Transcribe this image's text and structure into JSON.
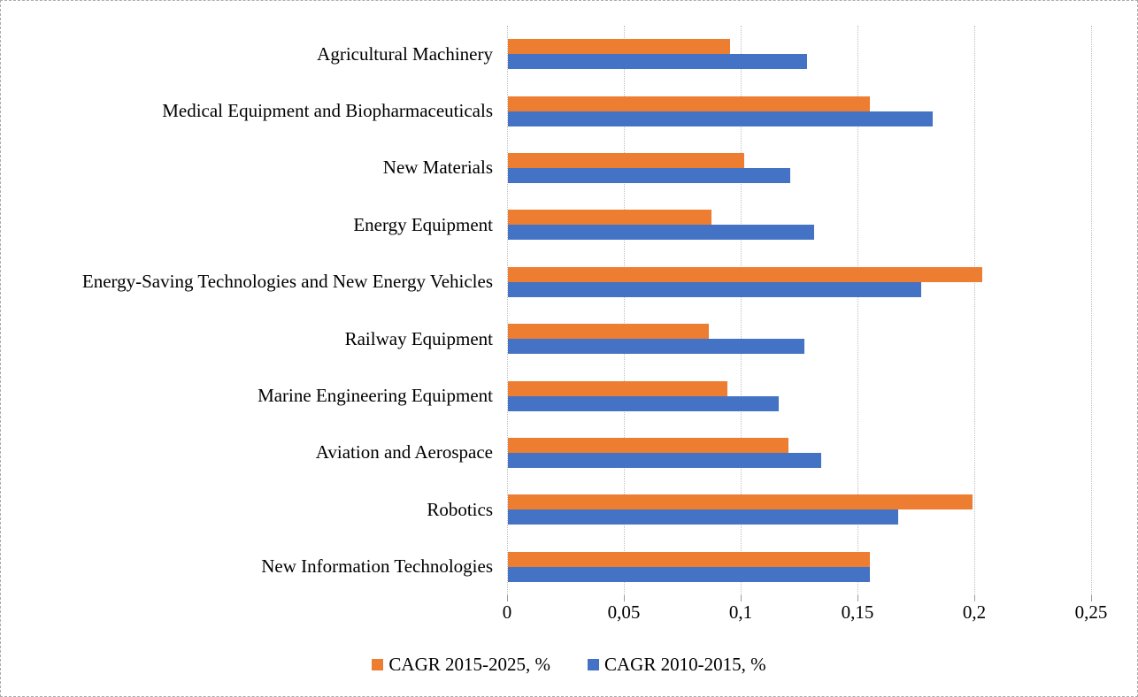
{
  "chart_data": {
    "type": "bar",
    "orientation": "horizontal",
    "title": "",
    "xlabel": "",
    "ylabel": "",
    "categories": [
      "Agricultural Machinery",
      "Medical Equipment and Biopharmaceuticals",
      "New Materials",
      "Energy Equipment",
      "Energy-Saving Technologies and New Energy Vehicles",
      "Railway Equipment",
      "Marine Engineering Equipment",
      "Aviation and Aerospace",
      "Robotics",
      "New Information Technologies"
    ],
    "series": [
      {
        "name": "CAGR 2015-2025, %",
        "color": "#ED7D31",
        "position_in_group": "top",
        "values": [
          0.095,
          0.155,
          0.101,
          0.087,
          0.203,
          0.086,
          0.094,
          0.12,
          0.199,
          0.155
        ]
      },
      {
        "name": "CAGR 2010-2015, %",
        "color": "#4472C4",
        "position_in_group": "bottom",
        "values": [
          0.128,
          0.182,
          0.121,
          0.131,
          0.177,
          0.127,
          0.116,
          0.134,
          0.167,
          0.155
        ]
      }
    ],
    "xlim": [
      0,
      0.25
    ],
    "x_ticks": [
      0,
      0.05,
      0.1,
      0.15,
      0.2,
      0.25
    ],
    "x_tick_labels": [
      "0",
      "0,05",
      "0,1",
      "0,15",
      "0,2",
      "0,25"
    ],
    "decimal_separator": ",",
    "grid": "vertical-dotted",
    "gridline_color": "#bfbfbf",
    "legend_position": "bottom-center",
    "text_color": "#000000",
    "background_color": "#ffffff",
    "border_style": "dashed-gray"
  }
}
